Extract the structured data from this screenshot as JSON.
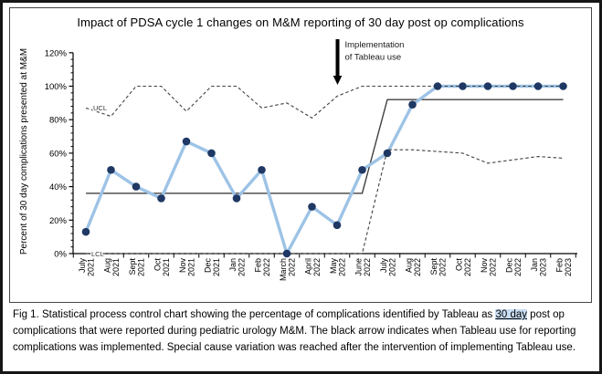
{
  "figure": {
    "title": "Impact of PDSA cycle 1 changes on M&M reporting of 30 day post op complications",
    "y_axis_title": "Percent of 30 day complications presented at M&M",
    "ucl_label": "UCL",
    "lcl_label": "LCL",
    "annotation": {
      "line1": "Implementation",
      "line2": "of Tableau use",
      "arrow_month_index": 10
    }
  },
  "chart_data": {
    "type": "line",
    "title": "Impact of PDSA cycle 1 changes on M&M reporting of 30 day post op complications",
    "xlabel": "",
    "ylabel": "Percent of 30 day complications presented at M&M",
    "ylim": [
      0,
      120
    ],
    "ytick_step": 20,
    "ytick_minor_step": 4,
    "ytick_format": "percent",
    "grid": false,
    "legend_position": "none",
    "categories": [
      "July 2021",
      "Aug 2021",
      "Sept 2021",
      "Oct 2021",
      "Nov 2021",
      "Dec 2021",
      "Jan 2022",
      "Feb 2022",
      "March 2022",
      "April 2022",
      "May 2022",
      "June 2022",
      "July 2022",
      "Aug 2022",
      "Sept 2022",
      "Oct 2022",
      "Nov 2022",
      "Dec 2022",
      "Jan 2023",
      "Feb 2023"
    ],
    "series": [
      {
        "name": "Percent of complications presented at M&M",
        "role": "data",
        "style": "solid-markers",
        "values": [
          13,
          50,
          40,
          33,
          67,
          60,
          33,
          50,
          0,
          28,
          17,
          50,
          60,
          89,
          100,
          100,
          100,
          100,
          100,
          100
        ]
      },
      {
        "name": "UCL",
        "role": "upper-control-limit",
        "style": "dashed",
        "values": [
          87,
          82,
          100,
          100,
          85,
          100,
          100,
          87,
          90,
          81,
          94,
          100,
          100,
          100,
          100,
          100,
          100,
          100,
          100,
          100
        ]
      },
      {
        "name": "LCL",
        "role": "lower-control-limit",
        "style": "dashed",
        "values": [
          0,
          0,
          0,
          0,
          0,
          0,
          0,
          0,
          0,
          0,
          0,
          0,
          62,
          62,
          61,
          60,
          54,
          56,
          58,
          57
        ]
      },
      {
        "name": "Center line",
        "role": "center-line",
        "style": "solid",
        "values": [
          36,
          36,
          36,
          36,
          36,
          36,
          36,
          36,
          36,
          36,
          36,
          36,
          92,
          92,
          92,
          92,
          92,
          92,
          92,
          92
        ]
      }
    ],
    "annotations": [
      {
        "text": "Implementation of Tableau use",
        "type": "down-arrow",
        "between": [
          "May 2022",
          "June 2022"
        ]
      }
    ]
  },
  "caption": {
    "segments": [
      {
        "text": "Fig 1. Statistical process control chart showing the percentage of complications identified by Tableau as ",
        "underline": false
      },
      {
        "text": "30 day",
        "underline": true
      },
      {
        "text": " post op complications that were reported during pediatric urology M&M. The black arrow indicates when Tableau use for reporting complications was implemented.  Special cause variation was reached after the intervention of implementing Tableau use.",
        "underline": false
      }
    ]
  },
  "colors": {
    "data_line": "#9DC3E6",
    "marker": "#1F3864",
    "control_limit": "#404040",
    "center_line": "#404040",
    "annotation_text": "#1a1a1a",
    "highlight": "#c9ddf2"
  }
}
